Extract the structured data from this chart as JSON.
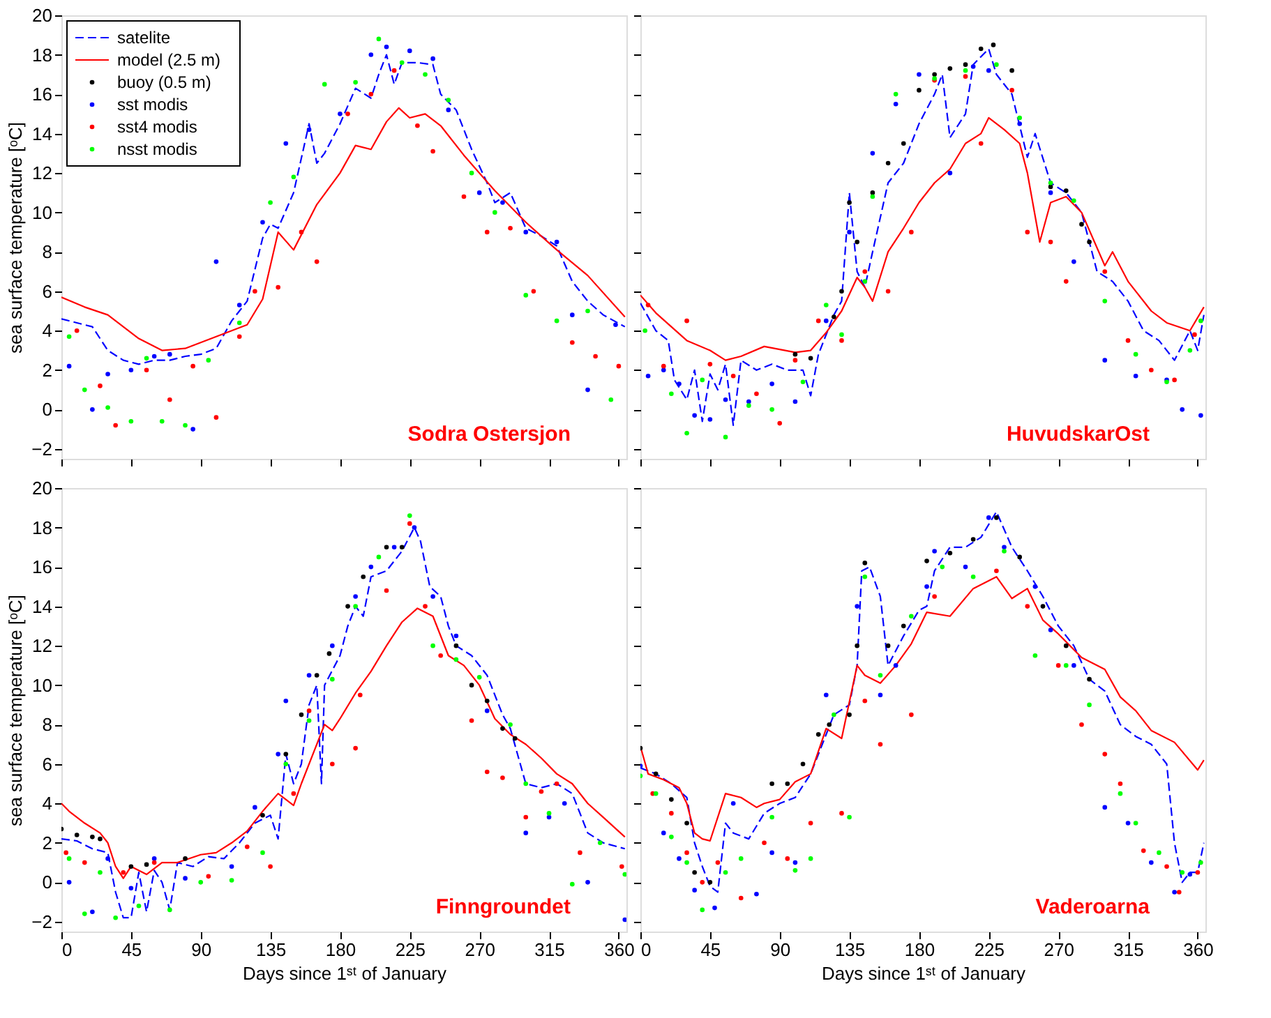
{
  "chart_data": [
    {
      "type": "line",
      "ylabel": "sea surface temperature [ᵒC]",
      "xlim": [
        0,
        365
      ],
      "ylim": [
        -2.5,
        20
      ],
      "xticks": [
        0,
        45,
        90,
        135,
        180,
        225,
        270,
        315,
        360
      ],
      "yticks": [
        -2,
        0,
        2,
        4,
        6,
        8,
        10,
        12,
        14,
        16,
        18,
        20
      ],
      "tick_labels": "y",
      "legend": "top left",
      "annotations": [
        "Sodra Ostersjon"
      ],
      "series": [
        {
          "name": "satelite",
          "type": "line",
          "line_style": "dashed",
          "color": "#0000ff",
          "x": [
            0,
            10,
            20,
            30,
            40,
            50,
            60,
            70,
            80,
            90,
            100,
            110,
            120,
            130,
            135,
            140,
            150,
            160,
            165,
            170,
            180,
            190,
            200,
            205,
            210,
            215,
            220,
            230,
            240,
            245,
            255,
            265,
            275,
            280,
            290,
            300,
            310,
            320,
            330,
            340,
            350,
            364
          ],
          "values": [
            4.6,
            4.4,
            4.2,
            3.0,
            2.5,
            2.3,
            2.5,
            2.5,
            2.7,
            2.8,
            3.1,
            4.5,
            5.5,
            8.7,
            9.4,
            9.2,
            11.0,
            14.5,
            12.5,
            13.0,
            14.5,
            16.3,
            15.8,
            17.0,
            18.0,
            16.5,
            17.6,
            17.6,
            17.5,
            16.0,
            15.2,
            13.2,
            11.5,
            10.5,
            11.0,
            9.2,
            8.8,
            8.3,
            6.5,
            5.5,
            4.8,
            4.2
          ]
        },
        {
          "name": "model (2.5 m)",
          "type": "line",
          "line_style": "solid",
          "color": "#ff0000",
          "x": [
            0,
            15,
            30,
            50,
            65,
            80,
            100,
            110,
            120,
            130,
            140,
            150,
            165,
            180,
            190,
            200,
            210,
            218,
            225,
            235,
            245,
            260,
            280,
            300,
            320,
            340,
            364
          ],
          "values": [
            5.7,
            5.2,
            4.8,
            3.6,
            3.0,
            3.1,
            3.7,
            4.0,
            4.3,
            5.6,
            9.0,
            8.1,
            10.4,
            12.0,
            13.4,
            13.2,
            14.6,
            15.3,
            14.8,
            15.0,
            14.4,
            12.9,
            11.1,
            9.5,
            8.1,
            6.8,
            4.7
          ]
        },
        {
          "name": "buoy (0.5 m)",
          "type": "scatter",
          "marker": "circle",
          "color": "#000000"
        },
        {
          "name": "sst modis",
          "type": "scatter",
          "marker": "circle",
          "color": "#0000ff",
          "x": [
            5,
            20,
            30,
            45,
            60,
            70,
            85,
            100,
            115,
            130,
            145,
            160,
            180,
            200,
            210,
            225,
            240,
            250,
            270,
            285,
            300,
            320,
            330,
            340,
            358
          ],
          "values": [
            2.2,
            0,
            1.8,
            2.0,
            2.7,
            2.8,
            -1.0,
            7.5,
            5.3,
            9.5,
            13.5,
            14.2,
            15.0,
            18.0,
            18.4,
            18.2,
            17.8,
            15.2,
            11.0,
            10.5,
            9.0,
            8.5,
            4.8,
            1.0,
            4.3
          ]
        },
        {
          "name": "sst4 modis",
          "type": "scatter",
          "marker": "circle",
          "color": "#ff0000",
          "x": [
            10,
            25,
            35,
            55,
            70,
            85,
            100,
            115,
            125,
            140,
            155,
            165,
            185,
            200,
            215,
            230,
            240,
            260,
            275,
            290,
            305,
            330,
            345,
            360
          ],
          "values": [
            4.0,
            1.2,
            -0.8,
            2.0,
            0.5,
            2.2,
            -0.4,
            3.7,
            6.0,
            6.2,
            9.0,
            7.5,
            15.0,
            16.0,
            17.2,
            14.4,
            13.1,
            10.8,
            9.0,
            9.2,
            6.0,
            3.4,
            2.7,
            2.2
          ]
        },
        {
          "name": "nsst modis",
          "type": "scatter",
          "marker": "circle",
          "color": "#00ff00",
          "x": [
            5,
            15,
            30,
            45,
            55,
            65,
            80,
            95,
            115,
            135,
            150,
            170,
            190,
            205,
            220,
            235,
            250,
            265,
            280,
            300,
            320,
            340,
            355
          ],
          "values": [
            3.7,
            1.0,
            0.1,
            -0.6,
            2.6,
            -0.6,
            -0.8,
            2.5,
            4.4,
            10.5,
            11.8,
            16.5,
            16.6,
            18.8,
            17.6,
            17.0,
            15.7,
            12.0,
            10.0,
            5.8,
            4.5,
            5.0,
            0.5
          ]
        }
      ]
    },
    {
      "type": "line",
      "xlim": [
        0,
        365
      ],
      "ylim": [
        -2.5,
        20
      ],
      "xticks": [
        0,
        45,
        90,
        135,
        180,
        225,
        270,
        315,
        360
      ],
      "yticks": [
        -2,
        0,
        2,
        4,
        6,
        8,
        10,
        12,
        14,
        16,
        18,
        20
      ],
      "tick_labels": false,
      "annotations": [
        "HuvudskarOst"
      ],
      "series": [
        {
          "type": "line",
          "line_style": "dashed",
          "color": "#0000ff",
          "x": [
            0,
            10,
            18,
            22,
            30,
            35,
            40,
            45,
            50,
            55,
            60,
            65,
            75,
            85,
            95,
            105,
            110,
            115,
            125,
            130,
            135,
            140,
            145,
            150,
            160,
            170,
            180,
            190,
            195,
            200,
            210,
            215,
            225,
            230,
            240,
            250,
            255,
            265,
            275,
            285,
            295,
            305,
            315,
            325,
            335,
            345,
            355,
            360,
            364
          ],
          "values": [
            5.4,
            4.0,
            3.5,
            1.5,
            0.5,
            2.0,
            -0.6,
            1.8,
            1.0,
            2.3,
            -0.8,
            2.5,
            2.0,
            2.3,
            2.0,
            2.0,
            0.7,
            2.8,
            4.8,
            5.5,
            11.0,
            7.0,
            6.2,
            8.0,
            11.5,
            12.5,
            14.5,
            16.0,
            17.0,
            13.8,
            15.0,
            17.5,
            18.3,
            17.0,
            16.0,
            12.8,
            14.0,
            11.5,
            11.0,
            10.0,
            7.0,
            6.5,
            5.5,
            4.0,
            3.5,
            2.5,
            4.0,
            3.0,
            4.8
          ]
        },
        {
          "type": "line",
          "line_style": "solid",
          "color": "#ff0000",
          "x": [
            0,
            10,
            20,
            30,
            45,
            55,
            65,
            80,
            100,
            110,
            120,
            130,
            140,
            145,
            150,
            160,
            170,
            180,
            190,
            200,
            210,
            220,
            225,
            235,
            245,
            250,
            258,
            265,
            275,
            285,
            300,
            305,
            315,
            330,
            340,
            355,
            364
          ],
          "values": [
            5.8,
            4.9,
            4.2,
            3.5,
            3.0,
            2.5,
            2.7,
            3.2,
            2.9,
            3.0,
            3.9,
            5.0,
            6.7,
            6.2,
            5.5,
            8.0,
            9.2,
            10.5,
            11.5,
            12.2,
            13.5,
            14.0,
            14.8,
            14.2,
            13.5,
            12.0,
            8.5,
            10.5,
            10.8,
            10.0,
            7.3,
            8.0,
            6.5,
            5.0,
            4.4,
            4.0,
            5.2
          ]
        },
        {
          "type": "scatter",
          "marker": "circle",
          "color": "#000000",
          "x": [
            100,
            110,
            125,
            130,
            135,
            140,
            150,
            160,
            170,
            180,
            190,
            200,
            210,
            220,
            228,
            240,
            265,
            275,
            285,
            290
          ],
          "values": [
            2.8,
            2.6,
            4.7,
            6.0,
            10.5,
            8.5,
            11.0,
            12.5,
            13.5,
            16.2,
            17.0,
            17.3,
            17.5,
            18.3,
            18.5,
            17.2,
            11.3,
            11.1,
            9.4,
            8.5
          ]
        },
        {
          "type": "scatter",
          "marker": "circle",
          "color": "#0000ff",
          "x": [
            5,
            15,
            25,
            35,
            45,
            55,
            70,
            85,
            100,
            120,
            135,
            150,
            165,
            180,
            200,
            215,
            225,
            245,
            265,
            280,
            300,
            320,
            340,
            350,
            362
          ],
          "values": [
            1.7,
            2.0,
            1.3,
            -0.3,
            -0.5,
            0.5,
            0.4,
            1.3,
            0.4,
            4.5,
            9.0,
            13.0,
            15.5,
            17.0,
            12.0,
            17.4,
            17.2,
            14.5,
            11.0,
            7.5,
            2.5,
            1.7,
            1.5,
            0.0,
            -0.3
          ]
        },
        {
          "type": "scatter",
          "marker": "circle",
          "color": "#ff0000",
          "x": [
            5,
            15,
            30,
            45,
            60,
            75,
            90,
            100,
            115,
            130,
            145,
            160,
            175,
            190,
            210,
            220,
            240,
            250,
            265,
            275,
            300,
            315,
            330,
            345,
            358
          ],
          "values": [
            5.3,
            2.2,
            4.5,
            2.3,
            1.7,
            0.8,
            -0.7,
            2.5,
            4.5,
            3.5,
            7.0,
            6.0,
            9.0,
            16.7,
            16.9,
            13.5,
            16.2,
            9.0,
            8.5,
            6.5,
            7.0,
            3.5,
            2.0,
            1.5,
            3.8
          ]
        },
        {
          "type": "scatter",
          "marker": "circle",
          "color": "#00ff00",
          "x": [
            3,
            20,
            30,
            40,
            55,
            70,
            85,
            105,
            120,
            130,
            145,
            150,
            165,
            190,
            210,
            230,
            245,
            265,
            280,
            300,
            320,
            340,
            355,
            362
          ],
          "values": [
            4.0,
            0.8,
            -1.2,
            1.5,
            -1.4,
            0.2,
            0.0,
            1.4,
            5.3,
            3.8,
            6.5,
            10.8,
            16.0,
            16.8,
            17.2,
            17.5,
            14.8,
            11.5,
            10.6,
            5.5,
            2.8,
            1.4,
            3.0,
            4.5
          ]
        }
      ]
    },
    {
      "type": "line",
      "xlabel": "Days since 1ˢᵗ of January",
      "ylabel": "sea surface temperature [ᵒC]",
      "xlim": [
        0,
        365
      ],
      "ylim": [
        -2.5,
        20
      ],
      "xticks": [
        0,
        45,
        90,
        135,
        180,
        225,
        270,
        315,
        360
      ],
      "yticks": [
        -2,
        0,
        2,
        4,
        6,
        8,
        10,
        12,
        14,
        16,
        18,
        20
      ],
      "annotations": [
        "Finngroundet"
      ],
      "series": [
        {
          "type": "line",
          "line_style": "dashed",
          "color": "#0000ff",
          "x": [
            0,
            10,
            20,
            30,
            35,
            40,
            45,
            50,
            55,
            60,
            65,
            70,
            75,
            85,
            95,
            105,
            115,
            125,
            135,
            140,
            145,
            150,
            155,
            160,
            165,
            168,
            170,
            180,
            185,
            190,
            195,
            200,
            210,
            220,
            228,
            232,
            238,
            245,
            250,
            255,
            265,
            275,
            285,
            290,
            300,
            310,
            320,
            330,
            340,
            350,
            364
          ],
          "values": [
            2.2,
            2.1,
            1.7,
            1.5,
            -0.5,
            -1.8,
            -1.8,
            0.5,
            -1.5,
            0.6,
            0.0,
            -1.4,
            1.0,
            0.8,
            1.3,
            1.2,
            2.0,
            3.0,
            3.4,
            2.2,
            6.5,
            5.0,
            6.0,
            9.0,
            10.0,
            5.0,
            10.0,
            11.5,
            13.0,
            14.0,
            13.5,
            15.5,
            15.8,
            16.8,
            18.0,
            17.3,
            15.0,
            14.5,
            13.0,
            12.0,
            11.5,
            10.5,
            8.5,
            7.8,
            5.0,
            4.8,
            5.0,
            4.5,
            2.5,
            2.0,
            1.7
          ]
        },
        {
          "type": "line",
          "line_style": "solid",
          "color": "#ff0000",
          "x": [
            0,
            5,
            15,
            25,
            30,
            35,
            40,
            45,
            55,
            65,
            75,
            90,
            100,
            110,
            120,
            130,
            140,
            145,
            150,
            155,
            165,
            170,
            175,
            180,
            190,
            200,
            210,
            220,
            230,
            240,
            245,
            250,
            260,
            270,
            280,
            290,
            300,
            310,
            320,
            330,
            340,
            350,
            364
          ],
          "values": [
            4.0,
            3.6,
            3.0,
            2.5,
            2.0,
            0.8,
            0.2,
            0.8,
            0.4,
            1.0,
            1.0,
            1.4,
            1.5,
            2.0,
            2.6,
            3.6,
            4.5,
            4.2,
            3.9,
            5.0,
            7.0,
            8.0,
            7.7,
            8.3,
            9.6,
            10.7,
            12.0,
            13.2,
            13.9,
            13.5,
            12.5,
            11.5,
            11.0,
            10.0,
            8.3,
            7.5,
            7.0,
            6.3,
            5.5,
            5.0,
            4.0,
            3.3,
            2.3
          ]
        },
        {
          "type": "scatter",
          "marker": "circle",
          "color": "#000000",
          "x": [
            0,
            10,
            20,
            25,
            45,
            55,
            80,
            130,
            145,
            155,
            165,
            173,
            185,
            195,
            210,
            220,
            255,
            265,
            275,
            285,
            293
          ],
          "values": [
            2.7,
            2.4,
            2.3,
            2.2,
            0.8,
            0.9,
            1.2,
            3.4,
            6.5,
            8.5,
            10.5,
            11.6,
            14.0,
            15.5,
            17.0,
            17.0,
            12.0,
            10.0,
            9.2,
            7.8,
            7.3
          ]
        },
        {
          "type": "scatter",
          "marker": "circle",
          "color": "#0000ff",
          "x": [
            5,
            20,
            30,
            45,
            60,
            80,
            110,
            125,
            140,
            145,
            160,
            175,
            190,
            200,
            215,
            228,
            240,
            255,
            275,
            300,
            315,
            325,
            340,
            364
          ],
          "values": [
            0.0,
            -1.5,
            1.2,
            -0.3,
            1.2,
            0.2,
            0.8,
            3.8,
            6.5,
            9.2,
            10.5,
            12.0,
            14.5,
            16.0,
            17.0,
            18.0,
            14.5,
            12.5,
            8.7,
            2.5,
            3.3,
            4.0,
            0.0,
            -1.9
          ]
        },
        {
          "type": "scatter",
          "marker": "circle",
          "color": "#ff0000",
          "x": [
            3,
            15,
            40,
            60,
            95,
            120,
            135,
            150,
            160,
            175,
            190,
            193,
            210,
            225,
            235,
            245,
            265,
            275,
            285,
            300,
            310,
            320,
            335,
            362
          ],
          "values": [
            1.5,
            1.0,
            0.5,
            1.0,
            0.3,
            1.8,
            0.8,
            4.5,
            8.7,
            6.0,
            6.8,
            9.5,
            14.8,
            18.2,
            14.0,
            11.5,
            8.2,
            5.6,
            5.3,
            3.3,
            4.6,
            5.0,
            1.5,
            0.8
          ]
        },
        {
          "type": "scatter",
          "marker": "circle",
          "color": "#00ff00",
          "x": [
            5,
            15,
            25,
            35,
            50,
            70,
            90,
            110,
            130,
            145,
            160,
            175,
            190,
            205,
            225,
            240,
            255,
            270,
            290,
            300,
            315,
            330,
            348,
            364
          ],
          "values": [
            1.2,
            -1.6,
            0.5,
            -1.8,
            -1.2,
            -1.4,
            0.0,
            0.1,
            1.5,
            6.0,
            8.2,
            10.3,
            14.0,
            16.5,
            18.6,
            12.0,
            11.3,
            10.4,
            8.0,
            5.0,
            3.5,
            -0.1,
            2.0,
            0.4
          ]
        }
      ]
    },
    {
      "type": "line",
      "xlabel": "Days since 1ˢᵗ of January",
      "xlim": [
        0,
        365
      ],
      "ylim": [
        -2.5,
        20
      ],
      "xticks": [
        0,
        45,
        90,
        135,
        180,
        225,
        270,
        315,
        360
      ],
      "yticks": [
        -2,
        0,
        2,
        4,
        6,
        8,
        10,
        12,
        14,
        16,
        18,
        20
      ],
      "tick_labels": "x",
      "annotations": [
        "Vaderoarna"
      ],
      "series": [
        {
          "type": "line",
          "line_style": "dashed",
          "color": "#0000ff",
          "x": [
            0,
            10,
            20,
            30,
            35,
            40,
            45,
            50,
            55,
            60,
            70,
            80,
            90,
            100,
            110,
            120,
            125,
            135,
            140,
            143,
            148,
            155,
            160,
            170,
            180,
            185,
            190,
            200,
            210,
            220,
            230,
            240,
            250,
            260,
            270,
            280,
            290,
            300,
            310,
            320,
            330,
            340,
            345,
            350,
            355,
            360,
            364
          ],
          "values": [
            5.8,
            5.5,
            5.0,
            4.3,
            2.0,
            0.8,
            -0.2,
            -0.5,
            3.0,
            2.5,
            2.2,
            3.5,
            4.0,
            4.3,
            5.5,
            7.5,
            8.5,
            9.0,
            11.0,
            15.8,
            16.0,
            14.5,
            11.0,
            12.5,
            13.8,
            14.0,
            15.8,
            17.0,
            17.0,
            17.5,
            18.8,
            17.0,
            15.8,
            14.5,
            13.0,
            12.0,
            10.3,
            9.7,
            8.0,
            7.4,
            7.0,
            6.0,
            2.0,
            0.0,
            0.5,
            0.5,
            2.0
          ]
        },
        {
          "type": "line",
          "line_style": "solid",
          "color": "#ff0000",
          "x": [
            0,
            5,
            15,
            25,
            30,
            35,
            40,
            45,
            55,
            65,
            75,
            80,
            90,
            100,
            110,
            120,
            130,
            140,
            145,
            155,
            165,
            175,
            185,
            200,
            215,
            230,
            240,
            250,
            260,
            270,
            285,
            300,
            310,
            320,
            330,
            345,
            360,
            364
          ],
          "values": [
            6.9,
            5.5,
            5.2,
            4.8,
            4.0,
            2.5,
            2.2,
            2.1,
            4.5,
            4.3,
            3.8,
            4.0,
            4.2,
            5.1,
            5.5,
            7.8,
            7.3,
            11.0,
            10.5,
            10.1,
            11.0,
            12.1,
            13.7,
            13.5,
            14.9,
            15.5,
            14.4,
            14.9,
            13.3,
            12.6,
            11.4,
            10.8,
            9.4,
            8.7,
            7.7,
            7.1,
            5.7,
            6.2
          ]
        },
        {
          "type": "scatter",
          "marker": "circle",
          "color": "#000000",
          "x": [
            0,
            10,
            20,
            30,
            35,
            45,
            85,
            95,
            105,
            115,
            122,
            135,
            140,
            145,
            160,
            170,
            185,
            200,
            215,
            230,
            245,
            260,
            275,
            290
          ],
          "values": [
            6.8,
            5.5,
            4.2,
            3.0,
            0.5,
            0.0,
            5.0,
            5.0,
            6.0,
            7.5,
            8.0,
            8.5,
            12.0,
            16.2,
            12.0,
            13.0,
            16.3,
            16.7,
            17.4,
            18.5,
            16.5,
            14.0,
            12.0,
            10.3
          ]
        },
        {
          "type": "scatter",
          "marker": "circle",
          "color": "#0000ff",
          "x": [
            0,
            15,
            25,
            35,
            48,
            60,
            75,
            85,
            100,
            120,
            140,
            155,
            165,
            185,
            190,
            210,
            225,
            235,
            255,
            265,
            280,
            300,
            315,
            330,
            345,
            355
          ],
          "values": [
            5.9,
            2.5,
            1.2,
            -0.4,
            -1.3,
            4.0,
            -0.6,
            1.5,
            1.0,
            9.5,
            14.0,
            9.5,
            11.0,
            15.0,
            16.8,
            16.0,
            18.5,
            17.0,
            15.0,
            12.8,
            11.0,
            3.8,
            3.0,
            1.0,
            -0.5,
            0.4
          ]
        },
        {
          "type": "scatter",
          "marker": "circle",
          "color": "#ff0000",
          "x": [
            8,
            20,
            30,
            40,
            50,
            65,
            80,
            95,
            110,
            130,
            145,
            155,
            175,
            190,
            230,
            250,
            270,
            285,
            300,
            310,
            325,
            340,
            348,
            360
          ],
          "values": [
            4.5,
            3.5,
            1.5,
            0.0,
            1.0,
            -0.8,
            2.0,
            1.2,
            3.0,
            3.5,
            9.2,
            7.0,
            8.5,
            14.5,
            15.8,
            14.0,
            11.0,
            8.0,
            6.5,
            5.0,
            1.6,
            0.8,
            -0.5,
            0.5
          ]
        },
        {
          "type": "scatter",
          "marker": "circle",
          "color": "#00ff00",
          "x": [
            0,
            10,
            20,
            30,
            40,
            55,
            65,
            85,
            100,
            110,
            125,
            135,
            145,
            155,
            175,
            195,
            215,
            235,
            255,
            275,
            290,
            310,
            320,
            335,
            350,
            362
          ],
          "values": [
            5.4,
            4.5,
            2.3,
            1.0,
            -1.4,
            0.5,
            1.2,
            3.3,
            0.6,
            1.2,
            8.5,
            3.3,
            15.5,
            10.5,
            13.5,
            16.0,
            15.5,
            16.8,
            11.5,
            11.0,
            9.0,
            4.5,
            3.0,
            1.5,
            0.5,
            1.0
          ]
        }
      ]
    }
  ]
}
